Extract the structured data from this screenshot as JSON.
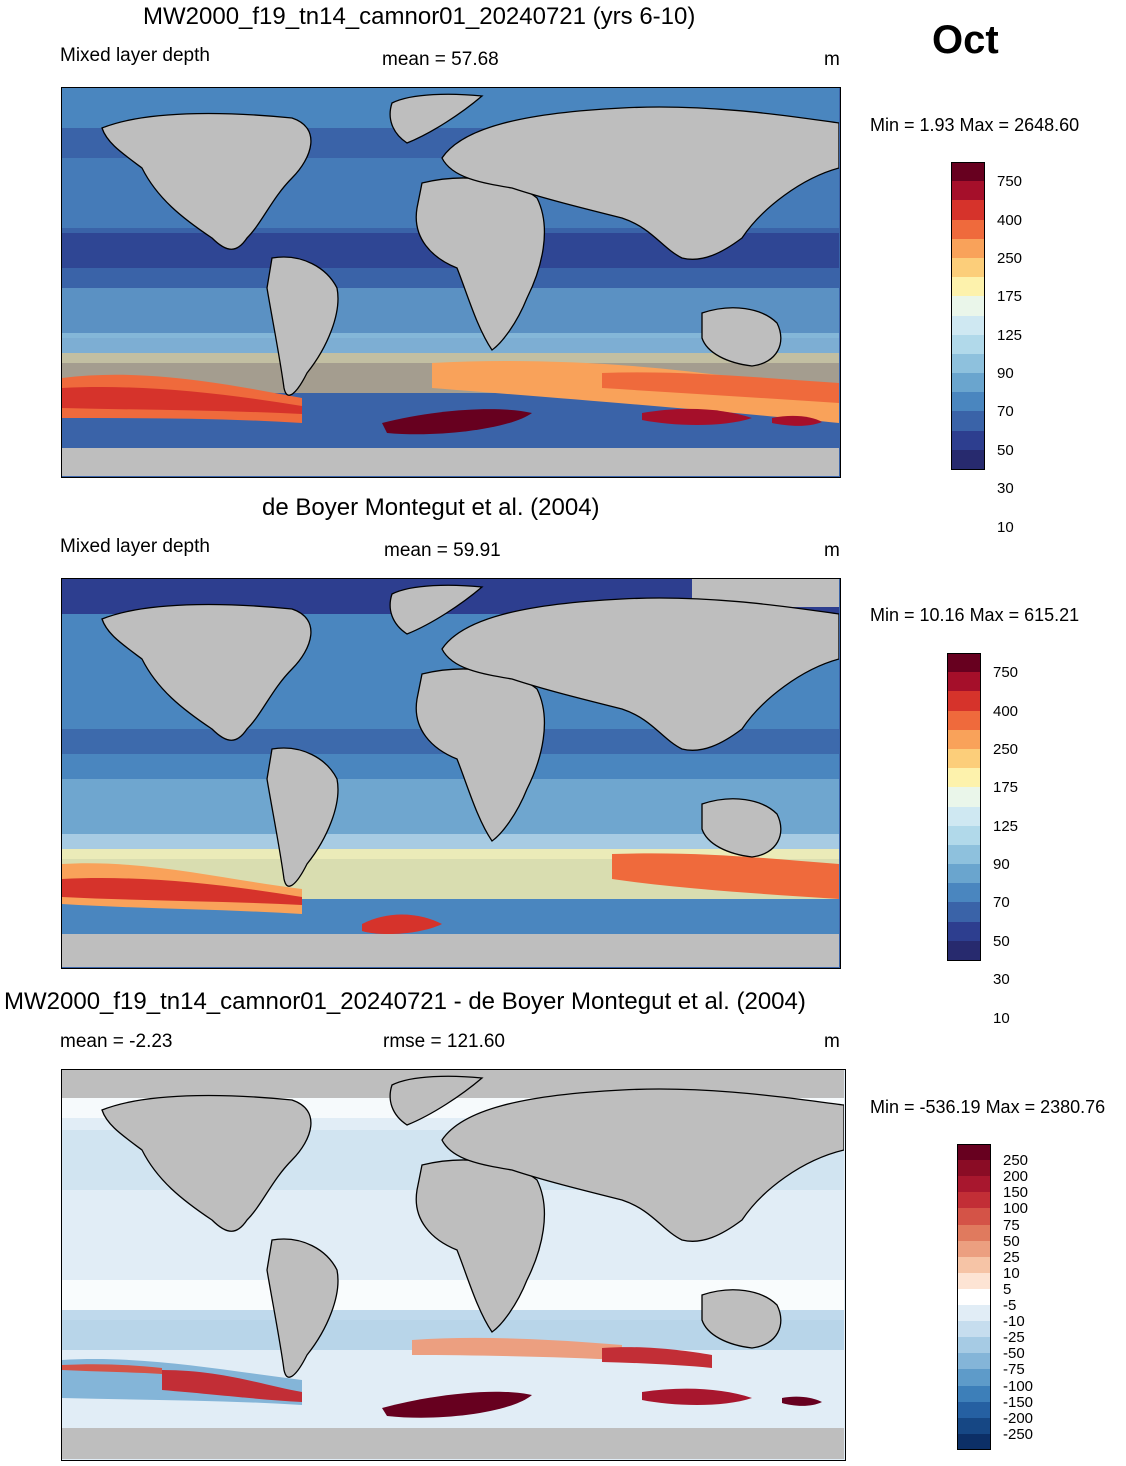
{
  "month": "Oct",
  "panels": [
    {
      "title": "MW2000_f19_tn14_camnor01_20240721 (yrs 6-10)",
      "left_label": "Mixed layer depth",
      "center_label": "mean =  57.68",
      "units": "m",
      "minmax": "Min =    1.93 Max = 2648.60",
      "colorbar_labels": [
        "750",
        "400",
        "250",
        "175",
        "125",
        "90",
        "70",
        "50",
        "30",
        "10"
      ],
      "colorbar_colors": [
        "#67001f",
        "#a50f2a",
        "#d6332b",
        "#ef6a3c",
        "#f9a25a",
        "#fcce7a",
        "#fdf2ac",
        "#eaf6ea",
        "#cfe8f2",
        "#b1d9ea",
        "#8ec1dd",
        "#6aa5ce",
        "#4a86bf",
        "#3a63a8",
        "#2d3e8f",
        "#272a6e"
      ]
    },
    {
      "title": "de Boyer Montegut et al. (2004)",
      "left_label": "Mixed layer depth",
      "center_label": "mean =  59.91",
      "units": "m",
      "minmax": "Min =  10.16 Max = 615.21",
      "colorbar_labels": [
        "750",
        "400",
        "250",
        "175",
        "125",
        "90",
        "70",
        "50",
        "30",
        "10"
      ],
      "colorbar_colors": [
        "#67001f",
        "#a50f2a",
        "#d6332b",
        "#ef6a3c",
        "#f9a25a",
        "#fcce7a",
        "#fdf2ac",
        "#eaf6ea",
        "#cfe8f2",
        "#b1d9ea",
        "#8ec1dd",
        "#6aa5ce",
        "#4a86bf",
        "#3a63a8",
        "#2d3e8f",
        "#272a6e"
      ]
    },
    {
      "title": "MW2000_f19_tn14_camnor01_20240721 - de Boyer Montegut et al. (2004)",
      "left_label": "mean =  -2.23",
      "center_label": "rmse = 121.60",
      "units": "m",
      "minmax": "Min = -536.19 Max = 2380.76",
      "colorbar_labels": [
        "250",
        "200",
        "150",
        "100",
        "75",
        "50",
        "25",
        "10",
        "5",
        "-5",
        "-10",
        "-25",
        "-50",
        "-75",
        "-100",
        "-150",
        "-200",
        "-250"
      ],
      "colorbar_colors": [
        "#67001f",
        "#8a0c25",
        "#a8172e",
        "#c22e36",
        "#d45347",
        "#e07a5e",
        "#ec9f80",
        "#f6c4a6",
        "#fde4d4",
        "#ffffff",
        "#e1edf6",
        "#c6ddee",
        "#a6cbe4",
        "#84b5d8",
        "#5e9bc9",
        "#3d7fb9",
        "#2560a2",
        "#164784",
        "#0c2f66"
      ]
    }
  ]
}
